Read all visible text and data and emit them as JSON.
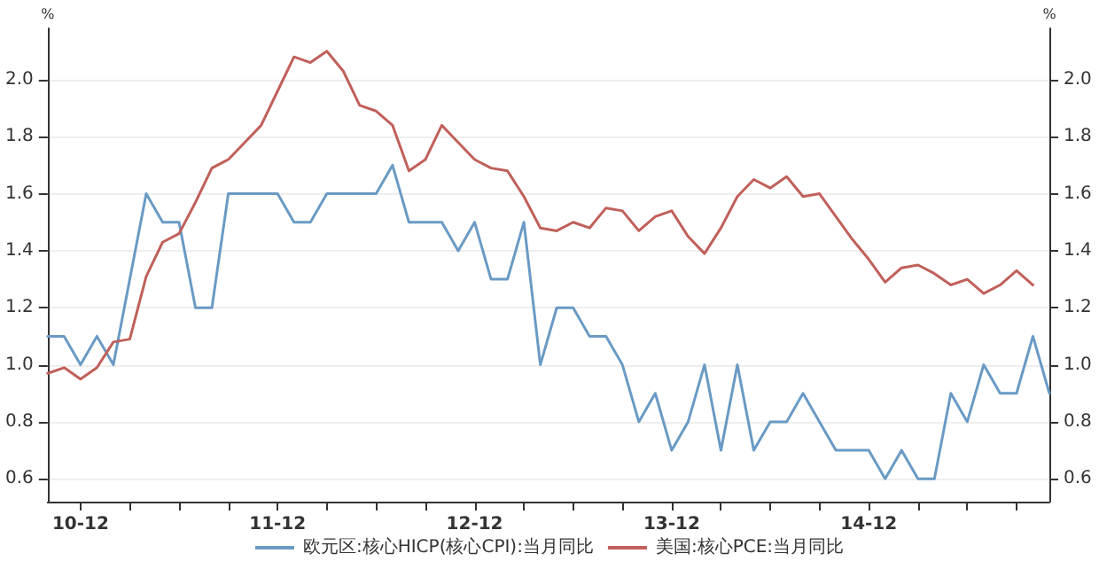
{
  "chart_data": {
    "type": "line",
    "ylabel": "%",
    "y2label": "%",
    "categories": [
      null,
      null,
      "10-12",
      null,
      null,
      null,
      null,
      null,
      null,
      null,
      null,
      null,
      null,
      null,
      "11-12",
      null,
      null,
      null,
      null,
      null,
      null,
      null,
      null,
      null,
      null,
      null,
      "12-12",
      null,
      null,
      null,
      null,
      null,
      null,
      null,
      null,
      null,
      null,
      null,
      "13-12",
      null,
      null,
      null,
      null,
      null,
      null,
      null,
      null,
      null,
      null,
      null,
      "14-12",
      null,
      null,
      null,
      null,
      null,
      null,
      null,
      null,
      null,
      null,
      null
    ],
    "series": [
      {
        "name": "欧元区:核心HICP(核心CPI):当月同比",
        "color": "#6a9ac4",
        "values": [
          1.1,
          1.1,
          1.0,
          1.1,
          1.0,
          1.3,
          1.6,
          1.5,
          1.5,
          1.2,
          1.2,
          1.6,
          1.6,
          1.6,
          1.6,
          1.5,
          1.5,
          1.6,
          1.6,
          1.6,
          1.6,
          1.7,
          1.5,
          1.5,
          1.5,
          1.4,
          1.5,
          1.3,
          1.3,
          1.5,
          1.0,
          1.2,
          1.2,
          1.1,
          1.1,
          1.0,
          0.8,
          0.9,
          0.7,
          0.8,
          1.0,
          0.7,
          1.0,
          0.7,
          0.8,
          0.8,
          0.9,
          0.8,
          0.7,
          0.7,
          0.7,
          0.6,
          0.7,
          0.6,
          0.6,
          0.9,
          0.8,
          1.0,
          0.9,
          0.9,
          1.1,
          0.9
        ]
      },
      {
        "name": "美国:核心PCE:当月同比",
        "color": "#c0605a",
        "values": [
          0.97,
          0.99,
          0.95,
          0.99,
          1.08,
          1.09,
          1.31,
          1.43,
          1.46,
          1.57,
          1.69,
          1.72,
          1.78,
          1.84,
          1.96,
          2.08,
          2.06,
          2.1,
          2.03,
          1.91,
          1.89,
          1.84,
          1.68,
          1.72,
          1.84,
          1.78,
          1.72,
          1.69,
          1.68,
          1.59,
          1.48,
          1.47,
          1.5,
          1.48,
          1.55,
          1.54,
          1.47,
          1.52,
          1.54,
          1.45,
          1.39,
          1.48,
          1.59,
          1.65,
          1.62,
          1.66,
          1.59,
          1.6,
          1.52,
          1.44,
          1.37,
          1.29,
          1.34,
          1.35,
          1.32,
          1.28,
          1.3,
          1.25,
          1.28,
          1.33,
          1.28,
          null
        ]
      }
    ],
    "ylim": [
      0.52,
      2.18
    ],
    "yticks": [
      {
        "value": 0.6,
        "label": "0.6"
      },
      {
        "value": 0.8,
        "label": "0.8"
      },
      {
        "value": 1,
        "label": "1.0"
      },
      {
        "value": 1.2,
        "label": "1.2"
      },
      {
        "value": 1.4,
        "label": "1.4"
      },
      {
        "value": 1.6,
        "label": "1.6"
      },
      {
        "value": 1.8,
        "label": "1.8"
      },
      {
        "value": 2,
        "label": "2.0"
      }
    ],
    "y2lim": [
      0.52,
      2.18
    ],
    "y2ticks": [
      {
        "value": 0.6,
        "label": "0.6"
      },
      {
        "value": 0.8,
        "label": "0.8"
      },
      {
        "value": 1,
        "label": "1.0"
      },
      {
        "value": 1.2,
        "label": "1.2"
      },
      {
        "value": 1.4,
        "label": "1.4"
      },
      {
        "value": 1.6,
        "label": "1.6"
      },
      {
        "value": 1.8,
        "label": "1.8"
      },
      {
        "value": 2,
        "label": "2.0"
      }
    ],
    "grid": "y",
    "legend": "bottom",
    "marker": "none",
    "line_style": "solid"
  }
}
